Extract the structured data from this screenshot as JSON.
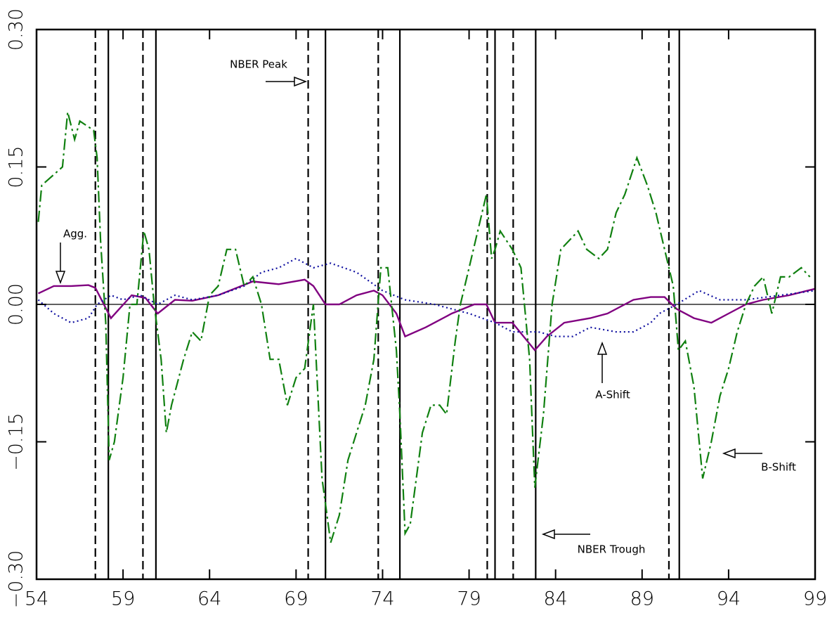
{
  "chart_data": {
    "type": "line",
    "x_ticks_font": "light",
    "xlim": [
      54,
      99
    ],
    "xticks": [
      54,
      59,
      64,
      69,
      74,
      79,
      84,
      89,
      94,
      99
    ],
    "ylim": [
      -0.3,
      0.3
    ],
    "yticks": [
      {
        "value": -0.3,
        "label": "−0.30"
      },
      {
        "value": -0.15,
        "label": "−0.15"
      },
      {
        "value": 0,
        "label": "0.00"
      },
      {
        "value": 0.15,
        "label": "0.15"
      },
      {
        "value": 0.3,
        "label": "0.30"
      }
    ],
    "hline": 0,
    "nber_peak_label": "NBER Peak",
    "nber_trough_label": "NBER Trough",
    "nber_peaks": [
      57.4,
      60.15,
      69.7,
      73.75,
      80.05,
      81.55,
      90.55
    ],
    "nber_troughs": [
      58.15,
      60.9,
      70.7,
      75.0,
      80.5,
      82.85,
      91.15
    ],
    "series": [
      {
        "name": "Agg.",
        "color": "#800080",
        "dash": "solid",
        "x": [
          54.1,
          55,
          56,
          57,
          57.4,
          58.3,
          59.5,
          60.3,
          61,
          62,
          63,
          64.5,
          66.5,
          68,
          69.5,
          70,
          70.7,
          71.5,
          72.5,
          73.5,
          74,
          74.8,
          75.3,
          76.5,
          77,
          78,
          79.3,
          80,
          80.5,
          81.5,
          82.8,
          83.5,
          84.5,
          86,
          87,
          88.5,
          89.5,
          90.3,
          91,
          92,
          93,
          94,
          95,
          96,
          97.5,
          99
        ],
        "values": [
          0.012,
          0.02,
          0.02,
          0.021,
          0.018,
          -0.015,
          0.01,
          0.007,
          -0.01,
          0.005,
          0.004,
          0.01,
          0.025,
          0.022,
          0.027,
          0.02,
          0.0,
          0.0,
          0.01,
          0.015,
          0.01,
          -0.01,
          -0.035,
          -0.025,
          -0.02,
          -0.01,
          0.0,
          0.0,
          -0.02,
          -0.02,
          -0.05,
          -0.035,
          -0.02,
          -0.015,
          -0.01,
          0.005,
          0.008,
          0.008,
          -0.005,
          -0.015,
          -0.02,
          -0.01,
          0.0,
          0.005,
          0.01,
          0.017
        ]
      },
      {
        "name": "A-Shift",
        "color": "#1010a0",
        "dash": "dot",
        "x": [
          54.1,
          55,
          56,
          57,
          57.5,
          58.3,
          59,
          60,
          61,
          62,
          63,
          64.5,
          66,
          67,
          68,
          69,
          70,
          71,
          72.5,
          74,
          75.3,
          77,
          78,
          79,
          80.5,
          81.5,
          83,
          84,
          85,
          86,
          87.5,
          88.5,
          89.5,
          90,
          91,
          92.3,
          93.5,
          95,
          97,
          99
        ],
        "values": [
          0.005,
          -0.01,
          -0.02,
          -0.015,
          0.0,
          0.01,
          0.005,
          0.01,
          0.0,
          0.01,
          0.005,
          0.01,
          0.02,
          0.035,
          0.04,
          0.05,
          0.04,
          0.045,
          0.035,
          0.015,
          0.005,
          0.0,
          -0.005,
          -0.01,
          -0.02,
          -0.03,
          -0.03,
          -0.035,
          -0.035,
          -0.025,
          -0.03,
          -0.03,
          -0.02,
          -0.01,
          0.0,
          0.015,
          0.005,
          0.005,
          0.01,
          0.015
        ]
      },
      {
        "name": "B-Shift",
        "color": "#108010",
        "dash": "dashdot",
        "x": [
          54.1,
          54.3,
          55.5,
          55.8,
          56.2,
          56.5,
          57.3,
          57.5,
          57.7,
          58.0,
          58.2,
          58.5,
          59,
          59.4,
          59.8,
          60.2,
          60.5,
          60.8,
          61.2,
          61.5,
          61.8,
          62.5,
          63,
          63.5,
          64,
          64.5,
          65,
          65.5,
          66,
          66.5,
          67,
          67.5,
          68,
          68.5,
          69,
          69.5,
          70,
          70.5,
          71,
          71.5,
          72,
          72.5,
          73,
          73.5,
          73.9,
          74.3,
          74.8,
          75,
          75.3,
          75.6,
          76.3,
          76.8,
          77.3,
          77.7,
          78.2,
          78.5,
          79,
          79.5,
          80,
          80.3,
          80.5,
          80.8,
          81.5,
          82,
          82.5,
          82.8,
          83.3,
          83.8,
          84.3,
          84.8,
          85.3,
          85.8,
          86.5,
          87,
          87.5,
          88,
          88.7,
          89.3,
          89.8,
          90.3,
          90.8,
          91.1,
          91.5,
          92,
          92.5,
          93,
          93.5,
          94,
          94.5,
          95,
          95.5,
          96,
          96.5,
          97,
          97.5,
          98.2,
          98.7
        ],
        "values": [
          0.09,
          0.13,
          0.15,
          0.21,
          0.18,
          0.2,
          0.19,
          0.16,
          0.07,
          -0.02,
          -0.17,
          -0.15,
          -0.08,
          0.0,
          0.0,
          0.08,
          0.06,
          0.0,
          -0.06,
          -0.14,
          -0.11,
          -0.06,
          -0.03,
          -0.04,
          0.01,
          0.02,
          0.06,
          0.06,
          0.02,
          0.03,
          0.0,
          -0.06,
          -0.06,
          -0.11,
          -0.08,
          -0.07,
          0.0,
          -0.19,
          -0.26,
          -0.23,
          -0.17,
          -0.14,
          -0.11,
          -0.06,
          0.04,
          0.04,
          -0.05,
          -0.12,
          -0.25,
          -0.24,
          -0.14,
          -0.11,
          -0.11,
          -0.12,
          -0.04,
          0.0,
          0.04,
          0.08,
          0.12,
          0.05,
          0.06,
          0.08,
          0.06,
          0.04,
          -0.06,
          -0.2,
          -0.12,
          0.0,
          0.06,
          0.07,
          0.08,
          0.06,
          0.05,
          0.06,
          0.1,
          0.12,
          0.16,
          0.13,
          0.1,
          0.06,
          0.02,
          -0.05,
          -0.04,
          -0.09,
          -0.19,
          -0.15,
          -0.1,
          -0.07,
          -0.03,
          0.0,
          0.02,
          0.03,
          -0.01,
          0.03,
          0.03,
          0.04,
          0.03
        ]
      }
    ]
  }
}
